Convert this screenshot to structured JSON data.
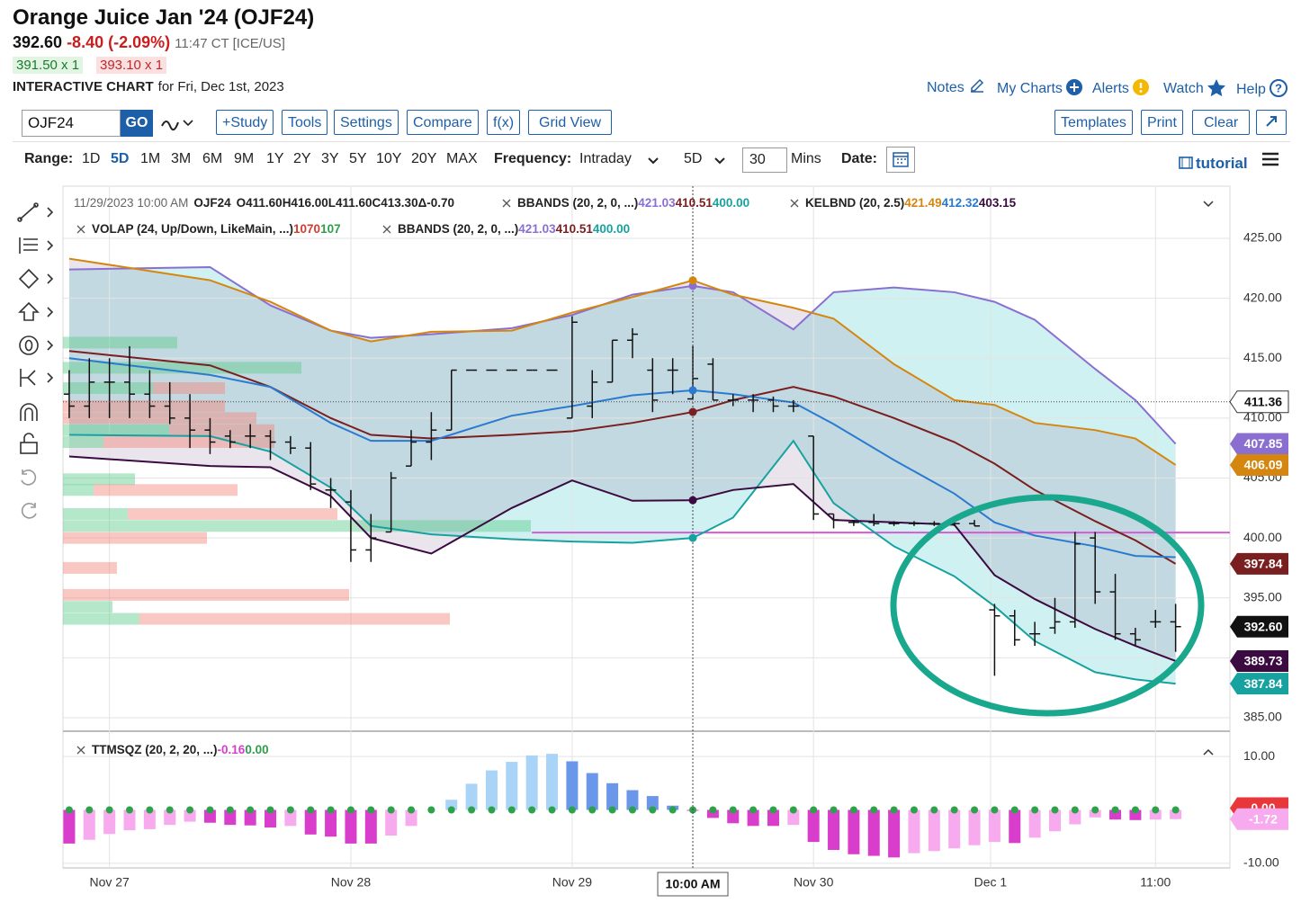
{
  "header": {
    "title": "Orange Juice Jan '24 (OJF24)",
    "last": "392.60",
    "change": "-8.40 (-2.09%)",
    "time": "11:47 CT [ICE/US]",
    "bid": "391.50 x 1",
    "ask": "393.10 x 1",
    "chart_label": "INTERACTIVE CHART",
    "chart_date": "for Fri, Dec 1st, 2023",
    "links": [
      "Notes",
      "My Charts",
      "Alerts",
      "Watch",
      "Help"
    ]
  },
  "toolbar": {
    "symbol": "OJF24",
    "go": "GO",
    "buttons_left": [
      "+Study",
      "Tools",
      "Settings",
      "Compare",
      "f(x)",
      "Grid View"
    ],
    "buttons_right": [
      "Templates",
      "Print",
      "Clear"
    ]
  },
  "range_bar": {
    "range_label": "Range:",
    "ranges": [
      "1D",
      "5D",
      "1M",
      "3M",
      "6M",
      "9M",
      "1Y",
      "2Y",
      "3Y",
      "5Y",
      "10Y",
      "20Y",
      "MAX"
    ],
    "active": "5D",
    "frequency_label": "Frequency:",
    "frequency": "Intraday",
    "period": "5D",
    "interval": "30",
    "interval_unit": "Mins",
    "date_label": "Date:",
    "tutorial": "tutorial"
  },
  "chart_data": {
    "type": "ohlc",
    "x": [
      0,
      1,
      2,
      3,
      4,
      5,
      6,
      7,
      8,
      9,
      10,
      11,
      12,
      13,
      14,
      15,
      16,
      17,
      18,
      19,
      20,
      21,
      22,
      23,
      24,
      25,
      26,
      27,
      28,
      29,
      30,
      31,
      32,
      33,
      34,
      35,
      36,
      37,
      38,
      39,
      40,
      41,
      42,
      43,
      44,
      45,
      46,
      47,
      48,
      49,
      50,
      51,
      52,
      53,
      54,
      55
    ],
    "open": [
      412,
      411,
      413,
      413,
      412,
      411,
      410,
      409,
      408.5,
      408.5,
      408.5,
      408,
      407.5,
      404,
      403,
      399,
      400.5,
      406,
      408,
      409,
      414,
      414,
      414,
      414,
      414,
      410,
      411,
      413,
      416.5,
      414,
      414,
      411.6,
      414.5,
      411.5,
      411.5,
      411.5,
      411,
      408.5,
      402,
      401.3,
      401.3,
      401.2,
      401.2,
      401.2,
      401.2,
      401.2,
      394,
      393.5,
      392,
      392.5,
      393,
      400,
      395.5,
      392,
      393,
      393
    ],
    "high": [
      414,
      415,
      415,
      416,
      414,
      413,
      412,
      410,
      409,
      409.5,
      409,
      408.5,
      408,
      405,
      404,
      402,
      405.5,
      409,
      410.5,
      414,
      414,
      414,
      414,
      414,
      414,
      418.5,
      414,
      416.5,
      417.5,
      415,
      415,
      416,
      415,
      412,
      412,
      411.8,
      411.5,
      408.5,
      402,
      401.5,
      402,
      401.4,
      401.4,
      401.4,
      401.4,
      401.5,
      394.5,
      394,
      393,
      395,
      400.5,
      400.5,
      397,
      392.5,
      394,
      394.5
    ],
    "low": [
      410,
      410,
      410,
      410,
      410,
      409.5,
      407.5,
      407,
      407.5,
      407.5,
      406.5,
      407,
      404,
      402.5,
      398,
      398,
      400.5,
      406,
      406.5,
      409,
      414,
      414,
      414,
      414,
      414,
      410,
      410,
      413,
      415,
      410.5,
      412,
      411.6,
      411.5,
      411,
      410.5,
      410.5,
      410.5,
      401.5,
      400.8,
      401,
      401,
      401,
      401,
      401,
      401,
      401,
      388.5,
      391,
      391,
      392,
      392.5,
      394.5,
      391.5,
      391,
      392.5,
      390.5
    ],
    "close": [
      411,
      413,
      413,
      412,
      411,
      410,
      409,
      408,
      408,
      408.5,
      408,
      407.5,
      404.5,
      404,
      399,
      400,
      405,
      408,
      409,
      414,
      414,
      414,
      414,
      414,
      414,
      418,
      413,
      416.5,
      417,
      411.5,
      414,
      413.3,
      411.5,
      411.5,
      411.5,
      411,
      411,
      402,
      401.5,
      401.3,
      401.2,
      401.2,
      401.2,
      401.2,
      401.2,
      401,
      393.5,
      391.5,
      392,
      393,
      399.5,
      395.5,
      392,
      391.5,
      393,
      392.6
    ],
    "bar_color": "#111111",
    "xlim": [
      -0.31,
      57.7
    ],
    "xticks": [
      {
        "value": 2,
        "label": "Nov 27"
      },
      {
        "value": 14,
        "label": "Nov 28"
      },
      {
        "value": 25,
        "label": "Nov 29"
      },
      {
        "value": 37,
        "label": "Nov 30"
      },
      {
        "value": 45.8,
        "label": "Dec 1"
      },
      {
        "value": 54,
        "label": "11:00"
      }
    ],
    "ylim": [
      384.1,
      429.35
    ],
    "yticks": [
      {
        "value": 385,
        "label": "385.00"
      },
      {
        "value": 390,
        "label": "390.00"
      },
      {
        "value": 395,
        "label": "395.00"
      },
      {
        "value": 400,
        "label": "400.00"
      },
      {
        "value": 405,
        "label": "405.00"
      },
      {
        "value": 410,
        "label": "410.00"
      },
      {
        "value": 415,
        "label": "415.00"
      },
      {
        "value": 420,
        "label": "420.00"
      },
      {
        "value": 425,
        "label": "425.00"
      }
    ],
    "grid": true,
    "band_x": [
      0,
      7,
      10,
      13,
      15,
      18,
      22,
      25,
      28,
      31,
      33,
      36,
      38,
      41,
      44,
      46,
      48,
      51,
      53,
      55
    ],
    "bands": [
      {
        "color": "#8a6fd1",
        "values": [
          422.4,
          422.6,
          419.4,
          417.3,
          416.7,
          417,
          417.5,
          418.6,
          420.3,
          421.03,
          420.5,
          417.4,
          420.5,
          420.9,
          420.5,
          419.7,
          418.2,
          414.1,
          411.5,
          407.85
        ]
      },
      {
        "color": "#7a1f1f",
        "values": [
          415.6,
          414.4,
          412.6,
          410,
          408.6,
          408.3,
          408.6,
          408.9,
          409.6,
          410.51,
          411.5,
          412.6,
          411.8,
          410,
          408,
          406.2,
          404,
          401.4,
          399.8,
          397.84
        ]
      },
      {
        "color": "#17a2a0",
        "values": [
          408.6,
          408.5,
          407.2,
          404.2,
          401,
          400.3,
          399.9,
          399.7,
          399.6,
          400,
          401.7,
          408.1,
          402.9,
          399.3,
          396.8,
          394.3,
          391.4,
          388.8,
          388.2,
          387.84
        ]
      },
      {
        "color": "#d4860f",
        "values": [
          423.3,
          421.5,
          419.7,
          417.3,
          416.4,
          417.2,
          417.3,
          418.8,
          420.1,
          421.49,
          420.3,
          419.2,
          418.3,
          414.5,
          411.5,
          411.1,
          409.6,
          409,
          408.3,
          406.09
        ]
      },
      {
        "color": "#2a7bd0",
        "values": [
          415,
          413.6,
          412.6,
          409.6,
          408.1,
          408.1,
          410.2,
          411,
          411.9,
          412.32,
          412,
          411.3,
          409.5,
          406.5,
          403.7,
          401.3,
          400.2,
          399.3,
          398.5,
          398.4
        ]
      },
      {
        "color": "#3a0a40",
        "values": [
          406.8,
          406,
          405.9,
          403.5,
          400,
          398.7,
          402.5,
          404.8,
          403.1,
          403.15,
          404,
          404.5,
          401.5,
          401.3,
          401.1,
          396.9,
          394.9,
          392.4,
          391,
          389.73
        ]
      }
    ],
    "volume_profile": {
      "prices": [
        416.3,
        414.2,
        412.5,
        411,
        410,
        409,
        408,
        404.9,
        404,
        402,
        401,
        400,
        397.5,
        395.25,
        394.25,
        393.25
      ],
      "up": [
        127,
        265,
        100,
        0,
        0,
        118,
        45,
        80,
        34,
        72,
        520,
        0,
        0,
        0,
        55,
        85
      ],
      "down": [
        0,
        0,
        80,
        180,
        215,
        117,
        190,
        0,
        160,
        233,
        0,
        160,
        60,
        318,
        0,
        345
      ],
      "up_color": "#5ccb8a",
      "down_color": "#f5857a"
    },
    "price_line": {
      "value": 400.45,
      "from": 23,
      "color": "#d65ad6"
    },
    "crosshair": {
      "x": 31,
      "x_label": "10:00 AM",
      "y": 411.36
    },
    "bar_legend": [
      "11/29/2023 10:00 AM",
      "OJF24",
      "O411.60",
      "H416.00",
      "L411.60",
      "C413.30",
      "Δ-0.70"
    ],
    "legend": [
      {
        "name": "BBANDS (20, 2, 0, ...)",
        "values": [
          "421.03",
          "410.51",
          "400.00"
        ],
        "colors": [
          "#8a6fd1",
          "#7a1f1f",
          "#17a2a0"
        ]
      },
      {
        "name": "KELBND (20, 2.5)",
        "values": [
          "421.49",
          "412.32",
          "403.15"
        ],
        "colors": [
          "#d4860f",
          "#2a7bd0",
          "#3a0a40"
        ]
      },
      {
        "name": "VOLAP (24, Up/Down, LikeMain, ...)",
        "values": [
          "1070",
          "107"
        ],
        "colors": [
          "#d63b2f",
          "#2e9e4a"
        ]
      },
      {
        "name": "BBANDS (20, 2, 0, ...)",
        "values": [
          "421.03",
          "410.51",
          "400.00"
        ],
        "colors": [
          "#8a6fd1",
          "#7a1f1f",
          "#17a2a0"
        ]
      }
    ],
    "squeeze": {
      "name": "TTMSQZ (20, 2, 20, ...)",
      "legend_values": [
        "-0.16",
        "0.00"
      ],
      "legend_colors": [
        "#d63fc9",
        "#2e9e4a"
      ],
      "values": [
        -6.3,
        -5.6,
        -4.5,
        -3.8,
        -3.6,
        -2.8,
        -2.2,
        -2.4,
        -2.8,
        -2.9,
        -3.3,
        -3.0,
        -4.6,
        -5.0,
        -6.3,
        -6.3,
        -4.8,
        -3.0,
        0,
        1.9,
        4.9,
        7.4,
        9.0,
        10.2,
        10.5,
        9.1,
        6.9,
        5.0,
        3.7,
        2.6,
        0.8,
        -0.16,
        -1.5,
        -2.5,
        -3.0,
        -3.0,
        -2.8,
        -6.0,
        -7.5,
        -8.3,
        -8.6,
        -8.9,
        -8.1,
        -7.7,
        -7.2,
        -6.6,
        -6.0,
        -6.2,
        -5.2,
        -4.0,
        -2.7,
        -1.4,
        -1.8,
        -1.9,
        -1.8,
        -1.72
      ],
      "colors": {
        "up_rising": "#a9d3f7",
        "up_falling": "#6b97ea",
        "down_falling": "#d83ecb",
        "down_rising": "#f7aaee",
        "dot": "#2ea24a"
      },
      "ylim": [
        -11.2,
        14.4
      ],
      "yticks": [
        {
          "value": -10,
          "label": "-10.00"
        },
        {
          "value": 10,
          "label": "10.00"
        }
      ]
    }
  }
}
